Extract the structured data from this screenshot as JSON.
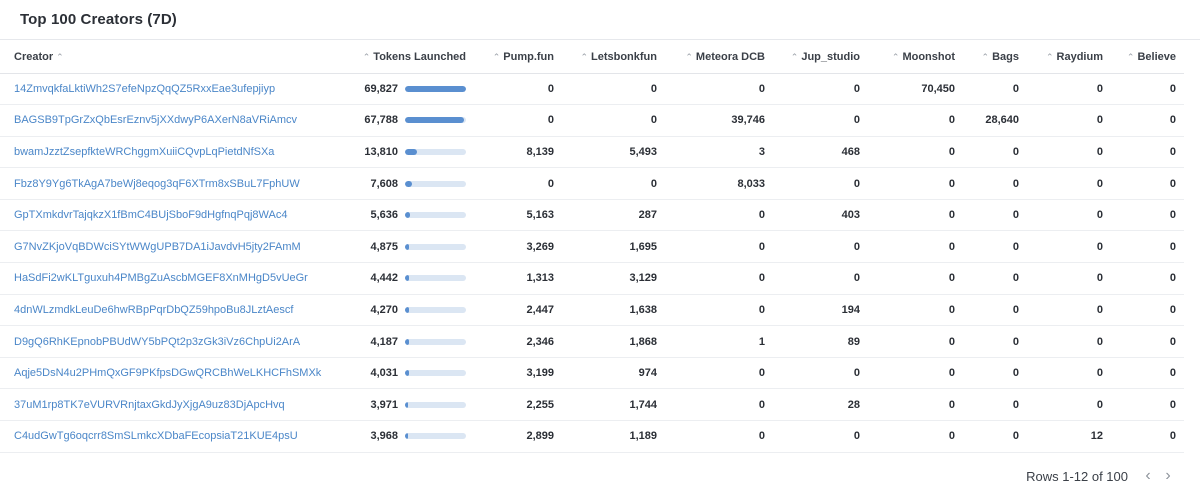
{
  "panel": {
    "title": "Top 100 Creators (7D)"
  },
  "columns": [
    "Creator",
    "Tokens Launched",
    "Pump.fun",
    "Letsbonkfun",
    "Meteora DCB",
    "Jup_studio",
    "Moonshot",
    "Bags",
    "Raydium",
    "Believe"
  ],
  "sort_icon": "sort-arrow-icon",
  "max_tokens": 69827,
  "rows": [
    {
      "creator": "14ZmvqkfaLktiWh2S7efeNpzQqQZ5RxxEae3ufepjiyp",
      "tokens": "69,827",
      "tokens_value": 69827,
      "pump": "0",
      "letsbonk": "0",
      "meteora": "0",
      "jup": "0",
      "moonshot": "70,450",
      "bags": "0",
      "raydium": "0",
      "believe": "0"
    },
    {
      "creator": "BAGSB9TpGrZxQbEsrEznv5jXXdwyP6AXerN8aVRiAmcv",
      "tokens": "67,788",
      "tokens_value": 67788,
      "pump": "0",
      "letsbonk": "0",
      "meteora": "39,746",
      "jup": "0",
      "moonshot": "0",
      "bags": "28,640",
      "raydium": "0",
      "believe": "0"
    },
    {
      "creator": "bwamJzztZsepfkteWRChggmXuiiCQvpLqPietdNfSXa",
      "tokens": "13,810",
      "tokens_value": 13810,
      "pump": "8,139",
      "letsbonk": "5,493",
      "meteora": "3",
      "jup": "468",
      "moonshot": "0",
      "bags": "0",
      "raydium": "0",
      "believe": "0"
    },
    {
      "creator": "Fbz8Y9Yg6TkAgA7beWj8eqog3qF6XTrm8xSBuL7FphUW",
      "tokens": "7,608",
      "tokens_value": 7608,
      "pump": "0",
      "letsbonk": "0",
      "meteora": "8,033",
      "jup": "0",
      "moonshot": "0",
      "bags": "0",
      "raydium": "0",
      "believe": "0"
    },
    {
      "creator": "GpTXmkdvrTajqkzX1fBmC4BUjSboF9dHgfnqPqj8WAc4",
      "tokens": "5,636",
      "tokens_value": 5636,
      "pump": "5,163",
      "letsbonk": "287",
      "meteora": "0",
      "jup": "403",
      "moonshot": "0",
      "bags": "0",
      "raydium": "0",
      "believe": "0"
    },
    {
      "creator": "G7NvZKjoVqBDWciSYtWWgUPB7DA1iJavdvH5jty2FAmM",
      "tokens": "4,875",
      "tokens_value": 4875,
      "pump": "3,269",
      "letsbonk": "1,695",
      "meteora": "0",
      "jup": "0",
      "moonshot": "0",
      "bags": "0",
      "raydium": "0",
      "believe": "0"
    },
    {
      "creator": "HaSdFi2wKLTguxuh4PMBgZuAscbMGEF8XnMHgD5vUeGr",
      "tokens": "4,442",
      "tokens_value": 4442,
      "pump": "1,313",
      "letsbonk": "3,129",
      "meteora": "0",
      "jup": "0",
      "moonshot": "0",
      "bags": "0",
      "raydium": "0",
      "believe": "0"
    },
    {
      "creator": "4dnWLzmdkLeuDe6hwRBpPqrDbQZ59hpoBu8JLztAescf",
      "tokens": "4,270",
      "tokens_value": 4270,
      "pump": "2,447",
      "letsbonk": "1,638",
      "meteora": "0",
      "jup": "194",
      "moonshot": "0",
      "bags": "0",
      "raydium": "0",
      "believe": "0"
    },
    {
      "creator": "D9gQ6RhKEpnobPBUdWY5bPQt2p3zGk3iVz6ChpUi2ArA",
      "tokens": "4,187",
      "tokens_value": 4187,
      "pump": "2,346",
      "letsbonk": "1,868",
      "meteora": "1",
      "jup": "89",
      "moonshot": "0",
      "bags": "0",
      "raydium": "0",
      "believe": "0"
    },
    {
      "creator": "Aqje5DsN4u2PHmQxGF9PKfpsDGwQRCBhWeLKHCFhSMXk",
      "tokens": "4,031",
      "tokens_value": 4031,
      "pump": "3,199",
      "letsbonk": "974",
      "meteora": "0",
      "jup": "0",
      "moonshot": "0",
      "bags": "0",
      "raydium": "0",
      "believe": "0"
    },
    {
      "creator": "37uM1rp8TK7eVURVRnjtaxGkdJyXjgA9uz83DjApcHvq",
      "tokens": "3,971",
      "tokens_value": 3971,
      "pump": "2,255",
      "letsbonk": "1,744",
      "meteora": "0",
      "jup": "28",
      "moonshot": "0",
      "bags": "0",
      "raydium": "0",
      "believe": "0"
    },
    {
      "creator": "C4udGwTg6oqcrr8SmSLmkcXDbaFEcopsiaT21KUE4psU",
      "tokens": "3,968",
      "tokens_value": 3968,
      "pump": "2,899",
      "letsbonk": "1,189",
      "meteora": "0",
      "jup": "0",
      "moonshot": "0",
      "bags": "0",
      "raydium": "12",
      "believe": "0"
    }
  ],
  "footer": {
    "rows_label": "Rows 1-12 of 100",
    "prev_icon": "chevron-left-icon",
    "next_icon": "chevron-right-icon"
  }
}
